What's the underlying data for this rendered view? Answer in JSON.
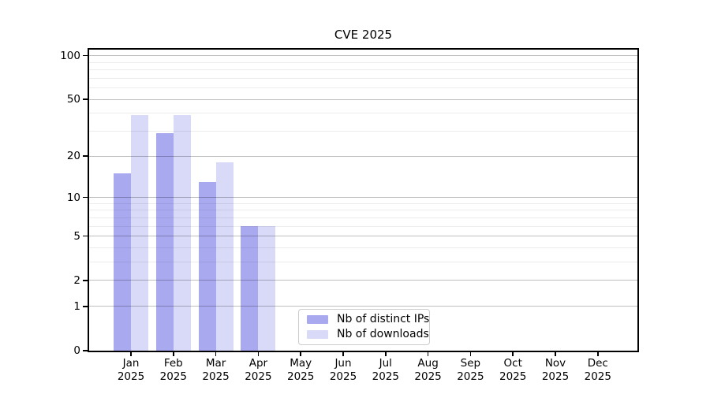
{
  "chart_data": {
    "type": "bar",
    "title": "CVE 2025",
    "categories": [
      "Jan 2025",
      "Feb 2025",
      "Mar 2025",
      "Apr 2025",
      "May 2025",
      "Jun 2025",
      "Jul 2025",
      "Aug 2025",
      "Sep 2025",
      "Oct 2025",
      "Nov 2025",
      "Dec 2025"
    ],
    "series": [
      {
        "name": "Nb of distinct IPs",
        "color": "#a9a9f0",
        "values": [
          15,
          29,
          13,
          6,
          0,
          0,
          0,
          0,
          0,
          0,
          0,
          0
        ]
      },
      {
        "name": "Nb of downloads",
        "color": "#d9d9f8",
        "values": [
          39,
          39,
          18,
          6,
          0,
          0,
          0,
          0,
          0,
          0,
          0,
          0
        ]
      }
    ],
    "xlabel": "",
    "ylabel": "",
    "yscale": "log1p",
    "ylim": [
      0,
      110
    ],
    "yticks": [
      0,
      1,
      2,
      5,
      10,
      20,
      50,
      100
    ],
    "yminorticks": [
      3,
      4,
      6,
      7,
      8,
      9,
      30,
      40,
      60,
      70,
      80,
      90
    ],
    "grid": true,
    "legend_position": "lower-center-left"
  }
}
